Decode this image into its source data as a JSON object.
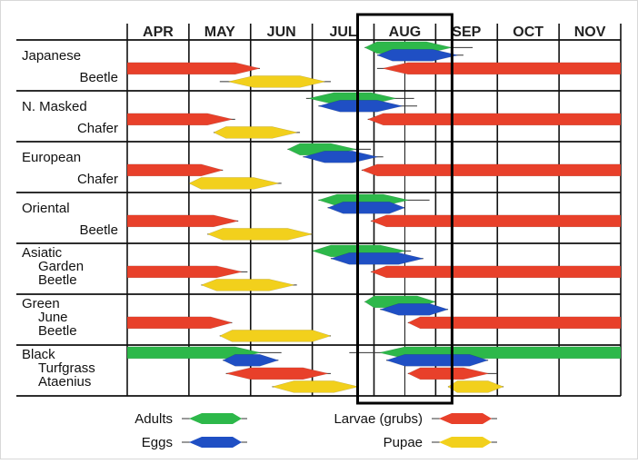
{
  "chart_data": {
    "type": "gantt",
    "title": "",
    "months": [
      "APR",
      "MAY",
      "JUN",
      "JUL",
      "AUG",
      "SEP",
      "OCT",
      "NOV"
    ],
    "highlight_month": "AUG",
    "stage_colors": {
      "adults": "#2db84a",
      "eggs": "#1f4fc4",
      "larvae": "#e8402a",
      "pupae": "#f2d01c"
    },
    "legend": [
      {
        "stage": "adults",
        "label": "Adults"
      },
      {
        "stage": "eggs",
        "label": "Eggs"
      },
      {
        "stage": "larvae",
        "label": "Larvae (grubs)"
      },
      {
        "stage": "pupae",
        "label": "Pupae"
      }
    ],
    "species": [
      {
        "name_lines": [
          "Japanese",
          "Beetle"
        ],
        "bars": [
          {
            "stage": "adults",
            "start": 3.85,
            "end": 5.6,
            "peak_start": 4.05,
            "peak_end": 4.85
          },
          {
            "stage": "eggs",
            "start": 4.05,
            "end": 5.45,
            "peak_start": 4.3,
            "peak_end": 4.95
          },
          {
            "stage": "larvae",
            "start": 0.0,
            "end": 2.15,
            "peak_start": 0.0,
            "peak_end": 1.75
          },
          {
            "stage": "larvae",
            "start": 4.05,
            "end": 8.0,
            "peak_start": 4.55,
            "peak_end": 8.0
          },
          {
            "stage": "pupae",
            "start": 1.5,
            "end": 3.3,
            "peak_start": 2.05,
            "peak_end": 2.8
          }
        ]
      },
      {
        "name_lines": [
          "N. Masked",
          "Chafer"
        ],
        "bars": [
          {
            "stage": "adults",
            "start": 2.9,
            "end": 4.65,
            "peak_start": 3.35,
            "peak_end": 3.95
          },
          {
            "stage": "eggs",
            "start": 3.1,
            "end": 4.7,
            "peak_start": 3.45,
            "peak_end": 4.05
          },
          {
            "stage": "larvae",
            "start": 0.0,
            "end": 1.75,
            "peak_start": 0.0,
            "peak_end": 1.3
          },
          {
            "stage": "larvae",
            "start": 3.9,
            "end": 8.0,
            "peak_start": 4.15,
            "peak_end": 8.0
          },
          {
            "stage": "pupae",
            "start": 1.4,
            "end": 2.8,
            "peak_start": 1.6,
            "peak_end": 2.35
          }
        ]
      },
      {
        "name_lines": [
          "European",
          "Chafer"
        ],
        "bars": [
          {
            "stage": "adults",
            "start": 2.6,
            "end": 3.95,
            "peak_start": 2.8,
            "peak_end": 3.3
          },
          {
            "stage": "eggs",
            "start": 2.85,
            "end": 4.15,
            "peak_start": 3.2,
            "peak_end": 3.65
          },
          {
            "stage": "larvae",
            "start": 0.0,
            "end": 1.55,
            "peak_start": 0.0,
            "peak_end": 1.2
          },
          {
            "stage": "larvae",
            "start": 3.8,
            "end": 8.0,
            "peak_start": 4.05,
            "peak_end": 8.0
          },
          {
            "stage": "pupae",
            "start": 1.0,
            "end": 2.5,
            "peak_start": 1.2,
            "peak_end": 2.05
          }
        ]
      },
      {
        "name_lines": [
          "Oriental",
          "Beetle"
        ],
        "bars": [
          {
            "stage": "adults",
            "start": 3.1,
            "end": 4.9,
            "peak_start": 3.4,
            "peak_end": 4.15
          },
          {
            "stage": "eggs",
            "start": 3.25,
            "end": 4.5,
            "peak_start": 3.5,
            "peak_end": 4.25
          },
          {
            "stage": "larvae",
            "start": 0.0,
            "end": 1.8,
            "peak_start": 0.0,
            "peak_end": 1.4
          },
          {
            "stage": "larvae",
            "start": 3.95,
            "end": 8.0,
            "peak_start": 4.2,
            "peak_end": 8.0
          },
          {
            "stage": "pupae",
            "start": 1.3,
            "end": 3.0,
            "peak_start": 1.55,
            "peak_end": 2.6
          }
        ]
      },
      {
        "name_lines": [
          "Asiatic",
          "Garden",
          "Beetle"
        ],
        "bars": [
          {
            "stage": "adults",
            "start": 3.0,
            "end": 4.6,
            "peak_start": 3.3,
            "peak_end": 4.1
          },
          {
            "stage": "eggs",
            "start": 3.3,
            "end": 4.8,
            "peak_start": 3.6,
            "peak_end": 4.4
          },
          {
            "stage": "larvae",
            "start": 0.0,
            "end": 1.95,
            "peak_start": 0.0,
            "peak_end": 1.45
          },
          {
            "stage": "larvae",
            "start": 3.95,
            "end": 8.0,
            "peak_start": 4.2,
            "peak_end": 8.0
          },
          {
            "stage": "pupae",
            "start": 1.2,
            "end": 2.75,
            "peak_start": 1.45,
            "peak_end": 2.3
          }
        ]
      },
      {
        "name_lines": [
          "Green",
          "June",
          "Beetle"
        ],
        "bars": [
          {
            "stage": "adults",
            "start": 3.85,
            "end": 5.0,
            "peak_start": 4.0,
            "peak_end": 4.7
          },
          {
            "stage": "eggs",
            "start": 4.1,
            "end": 5.2,
            "peak_start": 4.4,
            "peak_end": 4.9
          },
          {
            "stage": "larvae",
            "start": 0.0,
            "end": 1.7,
            "peak_start": 0.0,
            "peak_end": 1.35
          },
          {
            "stage": "larvae",
            "start": 4.55,
            "end": 8.0,
            "peak_start": 4.75,
            "peak_end": 8.0
          },
          {
            "stage": "pupae",
            "start": 1.5,
            "end": 3.3,
            "peak_start": 1.7,
            "peak_end": 3.0
          }
        ]
      },
      {
        "name_lines": [
          "Black",
          "Turfgrass",
          "Ataenius"
        ],
        "bars": [
          {
            "stage": "adults",
            "start": 0.0,
            "end": 2.5,
            "peak_start": 0.0,
            "peak_end": 1.75
          },
          {
            "stage": "adults",
            "start": 3.6,
            "end": 8.0,
            "peak_start": 4.5,
            "peak_end": 8.0
          },
          {
            "stage": "eggs",
            "start": 1.55,
            "end": 2.45,
            "peak_start": 1.75,
            "peak_end": 2.15
          },
          {
            "stage": "eggs",
            "start": 4.2,
            "end": 5.85,
            "peak_start": 4.5,
            "peak_end": 5.55
          },
          {
            "stage": "larvae",
            "start": 1.6,
            "end": 3.3,
            "peak_start": 2.0,
            "peak_end": 2.85
          },
          {
            "stage": "larvae",
            "start": 4.55,
            "end": 6.0,
            "peak_start": 4.75,
            "peak_end": 5.45
          },
          {
            "stage": "pupae",
            "start": 2.35,
            "end": 3.75,
            "peak_start": 2.7,
            "peak_end": 3.35
          },
          {
            "stage": "pupae",
            "start": 5.2,
            "end": 6.1,
            "peak_start": 5.35,
            "peak_end": 5.85
          }
        ]
      }
    ]
  }
}
